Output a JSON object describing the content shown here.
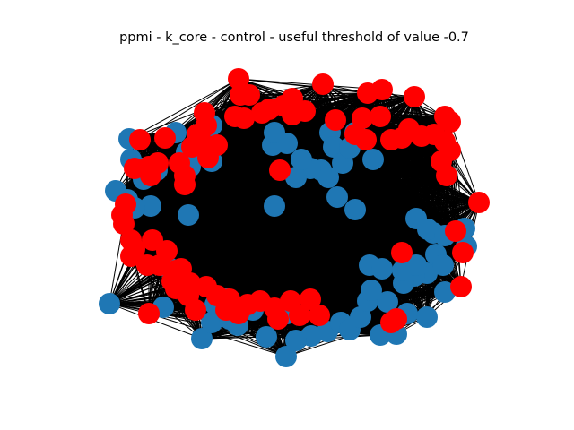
{
  "figure": {
    "title": "ppmi - k_core - control - useful threshold of value -0.7"
  },
  "legend_colors": {
    "blue_nodes": "#1f77b4",
    "red_nodes": "#ff0000",
    "edges": "#000000"
  },
  "chart_data": {
    "type": "network",
    "layout": "spring",
    "node_colors_present": [
      "#1f77b4",
      "#ff0000"
    ],
    "edge_color": "#000000",
    "edge_density": "very dense"
  }
}
